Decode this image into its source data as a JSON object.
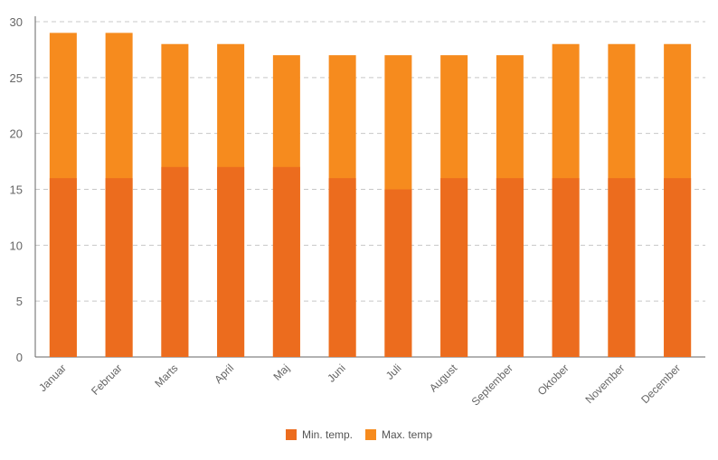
{
  "chart_data": {
    "type": "bar",
    "title": "",
    "xlabel": "",
    "ylabel": "",
    "categories": [
      "Januar",
      "Februar",
      "Marts",
      "April",
      "Maj",
      "Juni",
      "Juli",
      "August",
      "September",
      "Oktober",
      "November",
      "December"
    ],
    "series": [
      {
        "name": "Min. temp.",
        "color": "#ec6c1e",
        "values": [
          16,
          16,
          17,
          17,
          17,
          16,
          15,
          16,
          16,
          16,
          16,
          16
        ]
      },
      {
        "name": "Max. temp",
        "color": "#f68b1e",
        "values": [
          29,
          29,
          28,
          28,
          27,
          27,
          27,
          27,
          27,
          28,
          28,
          28
        ]
      }
    ],
    "ylim": [
      0,
      30
    ],
    "yticks": [
      0,
      5,
      10,
      15,
      20,
      25,
      30
    ],
    "grid": true,
    "legend": "bottom-center"
  }
}
